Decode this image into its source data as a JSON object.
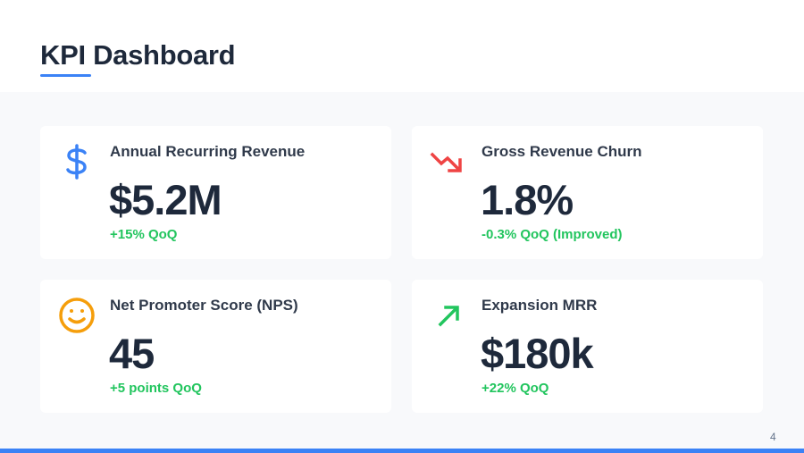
{
  "header": {
    "title": "KPI Dashboard"
  },
  "colors": {
    "accent": "#3b82f6",
    "positive": "#22c55e",
    "negative": "#ef4444",
    "neutral": "#f59e0b",
    "text": "#1e293b"
  },
  "cards": [
    {
      "icon": "dollar-icon",
      "title": "Annual Recurring Revenue",
      "value": "$5.2M",
      "change": "+15% QoQ"
    },
    {
      "icon": "trending-down-icon",
      "title": "Gross Revenue Churn",
      "value": "1.8%",
      "change": "-0.3% QoQ (Improved)"
    },
    {
      "icon": "smiley-icon",
      "title": "Net Promoter Score (NPS)",
      "value": "45",
      "change": "+5 points QoQ"
    },
    {
      "icon": "arrow-up-right-icon",
      "title": "Expansion MRR",
      "value": "$180k",
      "change": "+22% QoQ"
    }
  ],
  "footer": {
    "page_number": "4"
  }
}
